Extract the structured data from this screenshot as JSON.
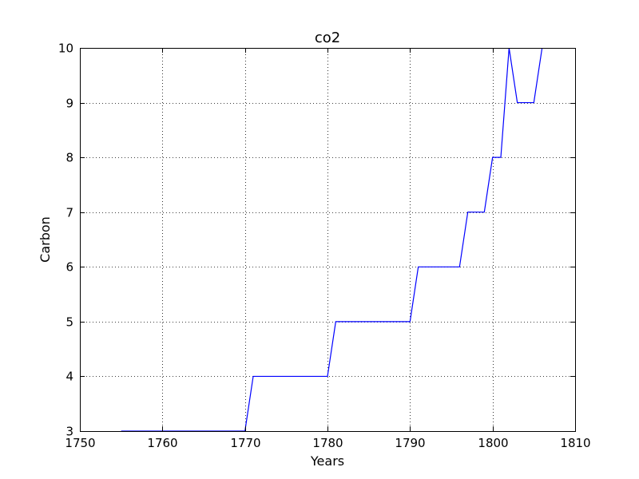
{
  "chart_data": {
    "type": "line",
    "title": "co2",
    "xlabel": "Years",
    "ylabel": "Carbon",
    "xlim": [
      1750,
      1810
    ],
    "ylim": [
      3,
      10
    ],
    "xticks": [
      1750,
      1760,
      1770,
      1780,
      1790,
      1800,
      1810
    ],
    "yticks": [
      3,
      4,
      5,
      6,
      7,
      8,
      9,
      10
    ],
    "grid": true,
    "grid_style": "dotted",
    "legend": "none",
    "series": [
      {
        "color": "#0000ff",
        "x": [
          1755,
          1756,
          1757,
          1758,
          1759,
          1760,
          1761,
          1762,
          1763,
          1764,
          1765,
          1766,
          1767,
          1768,
          1769,
          1770,
          1771,
          1772,
          1773,
          1774,
          1775,
          1776,
          1777,
          1778,
          1779,
          1780,
          1781,
          1782,
          1783,
          1784,
          1785,
          1786,
          1787,
          1788,
          1789,
          1790,
          1791,
          1792,
          1793,
          1794,
          1795,
          1796,
          1797,
          1798,
          1799,
          1800,
          1801,
          1802,
          1803,
          1804,
          1805,
          1806
        ],
        "y": [
          3,
          3,
          3,
          3,
          3,
          3,
          3,
          3,
          3,
          3,
          3,
          3,
          3,
          3,
          3,
          3,
          4,
          4,
          4,
          4,
          4,
          4,
          4,
          4,
          4,
          4,
          5,
          5,
          5,
          5,
          5,
          5,
          5,
          5,
          5,
          5,
          6,
          6,
          6,
          6,
          6,
          6,
          7,
          7,
          7,
          8,
          8,
          10,
          9,
          9,
          9,
          10
        ]
      }
    ]
  }
}
